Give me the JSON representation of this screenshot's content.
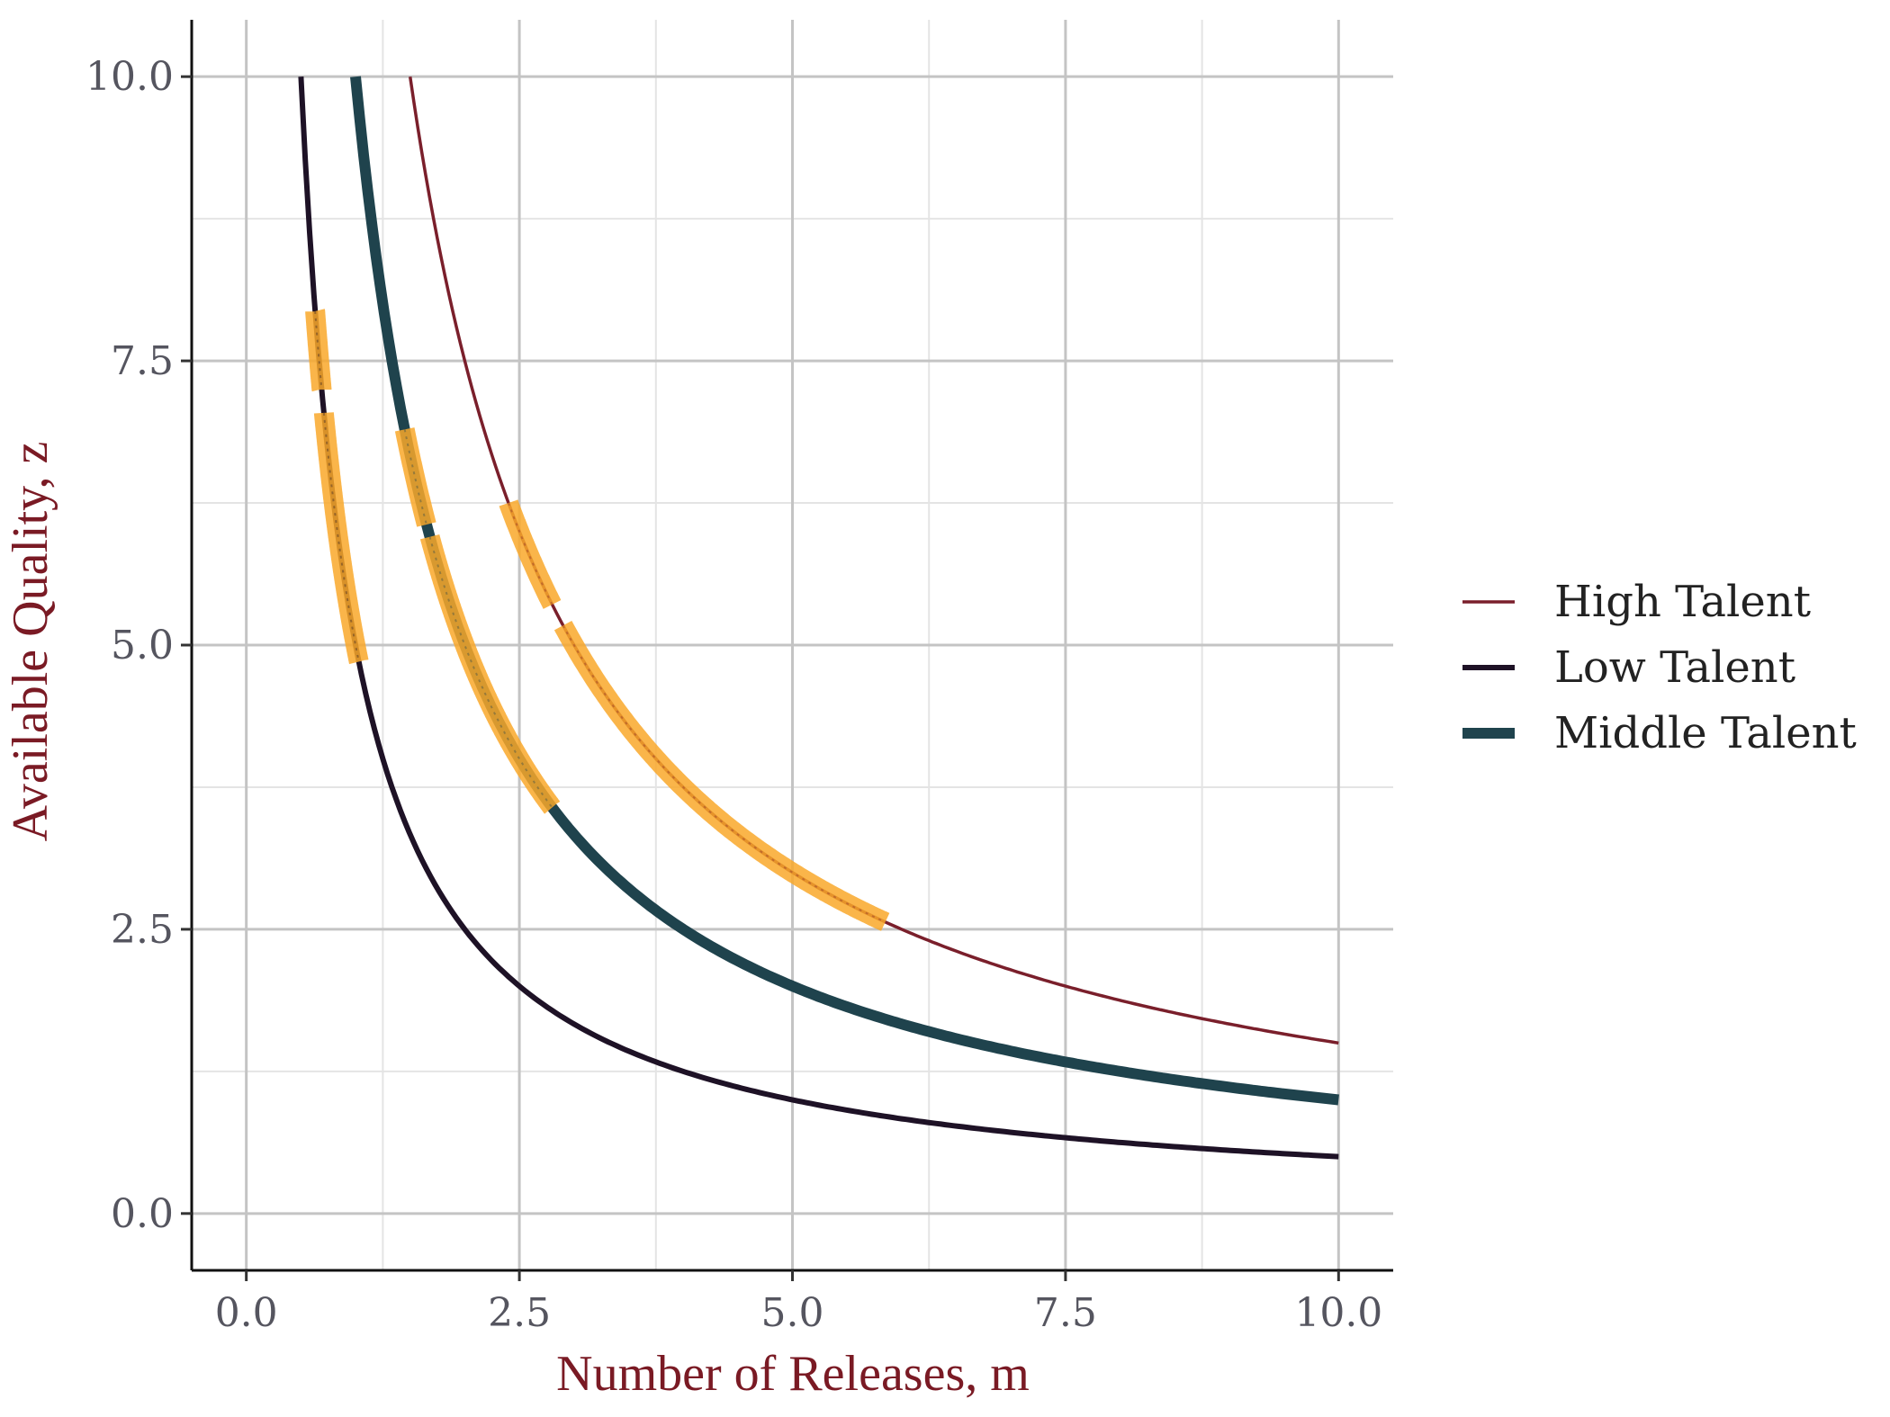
{
  "chart_data": {
    "type": "line",
    "xlabel": "Number of Releases, m",
    "ylabel": "Available Quality, z",
    "xlim": [
      -0.5,
      10.5
    ],
    "ylim": [
      -0.5,
      10.5
    ],
    "x_ticks": [
      "0.0",
      "2.5",
      "5.0",
      "7.5",
      "10.0"
    ],
    "y_ticks": [
      "0.0",
      "2.5",
      "5.0",
      "7.5",
      "10.0"
    ],
    "grid": true,
    "legend_position": "right",
    "series": [
      {
        "name": "High Talent",
        "color": "#7a1f2b",
        "weight": "thin",
        "formula": "z = 15 / m",
        "x_range": [
          1.5,
          10.0
        ],
        "highlight_ranges": [
          [
            2.4,
            2.8
          ],
          [
            2.9,
            5.85
          ]
        ]
      },
      {
        "name": "Low Talent",
        "color": "#1e1226",
        "weight": "medium",
        "formula": "z = 5 / m",
        "x_range": [
          0.5,
          10.0
        ],
        "highlight_ranges": [
          [
            0.63,
            0.69
          ],
          [
            0.71,
            1.03
          ]
        ]
      },
      {
        "name": "Middle Talent",
        "color": "#1f434d",
        "weight": "thick",
        "formula": "z = 10 / m",
        "x_range": [
          1.0,
          10.0
        ],
        "highlight_ranges": [
          [
            1.45,
            1.65
          ],
          [
            1.68,
            2.8
          ]
        ]
      }
    ],
    "highlight_color": "#f9a82a"
  }
}
